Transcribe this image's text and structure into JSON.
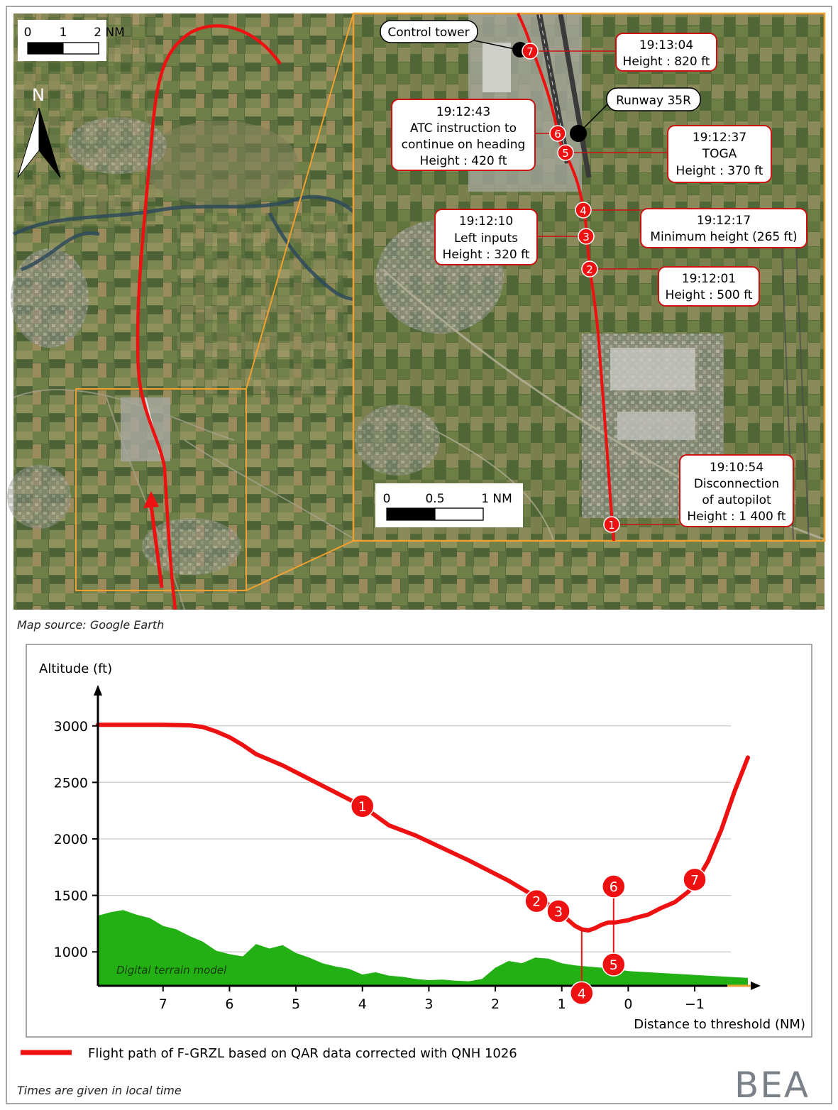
{
  "colors": {
    "flight_path": "#ee1111",
    "terrain": "#22b014",
    "inset_border": "#f0a030",
    "callout_border": "#cc1111",
    "map_dark": "#3d5a30",
    "map_light": "#8a9a5a"
  },
  "map": {
    "north_label": "N",
    "scale_large": {
      "labels": [
        "0",
        "1",
        "2 NM"
      ]
    },
    "scale_small": {
      "labels": [
        "0",
        "0.5",
        "1 NM"
      ]
    },
    "landmarks": {
      "control_tower": "Control tower",
      "runway": "Runway 35R"
    },
    "events": [
      {
        "id": "1",
        "time": "19:10:54",
        "lines": [
          "Disconnection",
          "of autopilot",
          "Height : 1 400 ft"
        ]
      },
      {
        "id": "2",
        "time": "19:12:01",
        "lines": [
          "Height : 500 ft"
        ]
      },
      {
        "id": "3",
        "time": "19:12:10",
        "lines": [
          "Left inputs",
          "Height : 320 ft"
        ]
      },
      {
        "id": "4",
        "time": "19:12:17",
        "lines": [
          "Minimum height (265 ft)"
        ]
      },
      {
        "id": "5",
        "time": "19:12:37",
        "lines": [
          "TOGA",
          "Height : 370 ft"
        ]
      },
      {
        "id": "6",
        "time": "19:12:43",
        "lines": [
          "ATC instruction to",
          "continue on heading",
          "Height : 420 ft"
        ]
      },
      {
        "id": "7",
        "time": "19:13:04",
        "lines": [
          "Height : 820 ft"
        ]
      }
    ],
    "source": "Map source: Google Earth"
  },
  "chart_data": {
    "type": "line",
    "ylabel": "Altitude (ft)",
    "xlabel": "Distance to threshold (NM)",
    "x_reversed": true,
    "xlim": [
      7.98,
      -1.95
    ],
    "ylim": [
      700,
      3300
    ],
    "x_ticks": [
      7,
      6,
      5,
      4,
      3,
      2,
      1,
      0,
      -1
    ],
    "x_tick_labels": [
      "7",
      "6",
      "5",
      "4",
      "3",
      "2",
      "1",
      "0",
      "−1"
    ],
    "y_ticks": [
      1000,
      1500,
      2000,
      2500,
      3000
    ],
    "grid": "horizontal",
    "series": [
      {
        "name": "Flight path of F-GRZL based on QAR data corrected with QNH 1026",
        "x": [
          7.98,
          7.5,
          7.0,
          6.6,
          6.4,
          6.2,
          6.0,
          5.8,
          5.6,
          5.4,
          5.2,
          5.0,
          4.6,
          4.2,
          4.0,
          3.6,
          3.2,
          2.8,
          2.4,
          2.0,
          1.8,
          1.6,
          1.4,
          1.2,
          1.0,
          0.9,
          0.8,
          0.7,
          0.6,
          0.5,
          0.4,
          0.3,
          0.2,
          0.1,
          0.0,
          -0.1,
          -0.3,
          -0.5,
          -0.7,
          -0.9,
          -1.0,
          -1.2,
          -1.4,
          -1.6,
          -1.8
        ],
        "values": [
          3010,
          3010,
          3010,
          3005,
          2990,
          2950,
          2900,
          2830,
          2750,
          2700,
          2650,
          2590,
          2470,
          2350,
          2290,
          2120,
          2030,
          1920,
          1810,
          1690,
          1630,
          1560,
          1490,
          1420,
          1340,
          1280,
          1230,
          1200,
          1190,
          1210,
          1240,
          1260,
          1260,
          1270,
          1280,
          1300,
          1330,
          1390,
          1440,
          1530,
          1600,
          1800,
          2080,
          2420,
          2720
        ]
      },
      {
        "name": "Digital terrain model",
        "x": [
          7.98,
          7.8,
          7.6,
          7.4,
          7.2,
          7.0,
          6.8,
          6.6,
          6.4,
          6.2,
          6.0,
          5.8,
          5.6,
          5.4,
          5.2,
          5.0,
          4.8,
          4.6,
          4.4,
          4.2,
          4.0,
          3.8,
          3.6,
          3.4,
          3.2,
          3.0,
          2.8,
          2.6,
          2.4,
          2.2,
          2.0,
          1.8,
          1.6,
          1.4,
          1.2,
          1.0,
          0.8,
          0.6,
          0.4,
          0.2,
          0.0,
          -0.3,
          -0.6,
          -0.9,
          -1.2,
          -1.5,
          -1.8
        ],
        "values": [
          1320,
          1350,
          1370,
          1330,
          1300,
          1230,
          1200,
          1140,
          1090,
          1010,
          980,
          960,
          1070,
          1030,
          1060,
          990,
          950,
          900,
          870,
          850,
          800,
          820,
          790,
          780,
          760,
          750,
          755,
          745,
          740,
          760,
          860,
          920,
          900,
          950,
          940,
          900,
          880,
          870,
          860,
          850,
          830,
          820,
          810,
          800,
          790,
          780,
          770
        ]
      }
    ],
    "event_markers": [
      {
        "id": "1",
        "x": 4.0,
        "y": 2290
      },
      {
        "id": "2",
        "x": 1.38,
        "y": 1450
      },
      {
        "id": "3",
        "x": 1.05,
        "y": 1360
      },
      {
        "id": "4",
        "x": 0.7,
        "y": 1200
      },
      {
        "id": "5",
        "x": 0.22,
        "y": 1265
      },
      {
        "id": "6",
        "x": 0.22,
        "y": 1265
      },
      {
        "id": "7",
        "x": -1.0,
        "y": 1640
      }
    ],
    "annotation": "Digital terrain model",
    "legend": "bottom",
    "legend_label": "Flight path of F-GRZL based on QAR data corrected with QNH 1026"
  },
  "footer": {
    "note": "Times are given in local time",
    "logo": "BEA"
  }
}
